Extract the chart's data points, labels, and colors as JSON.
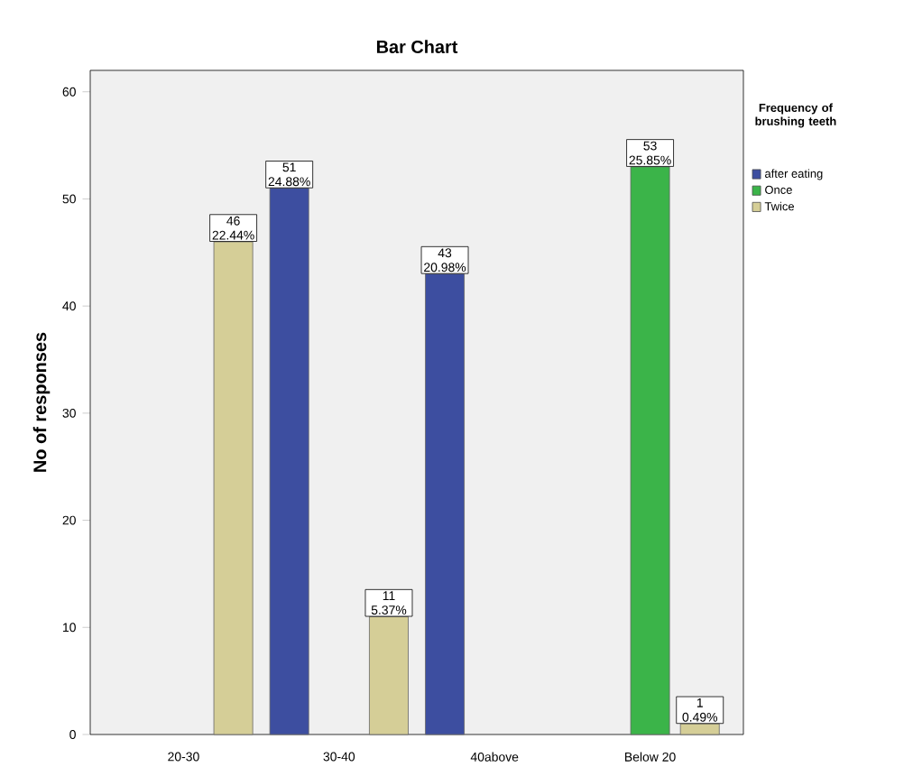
{
  "chart_data": {
    "type": "bar",
    "title": "Bar Chart",
    "ylabel": "No of responses",
    "legend_title": "Frequency of brushing teeth",
    "categories": [
      "20-30",
      "30-40",
      "40above",
      "Below 20"
    ],
    "series": [
      {
        "name": "after eating",
        "color": "#3d4ea0",
        "values": [
          null,
          51,
          43,
          null
        ],
        "value_labels": [
          null,
          "51 24.88%",
          "43 20.98%",
          null
        ]
      },
      {
        "name": "Once",
        "color": "#3bb449",
        "values": [
          null,
          null,
          null,
          53
        ],
        "value_labels": [
          null,
          null,
          null,
          "53 25.85%"
        ]
      },
      {
        "name": "Twice",
        "color": "#d5ce97",
        "values": [
          46,
          11,
          null,
          1
        ],
        "value_labels": [
          "46 22.44%",
          "11 5.37%",
          null,
          "1 0.49%"
        ]
      }
    ],
    "ylim": [
      0,
      62
    ],
    "yticks": [
      0,
      10,
      20,
      30,
      40,
      50,
      60
    ],
    "legend": "top right"
  }
}
